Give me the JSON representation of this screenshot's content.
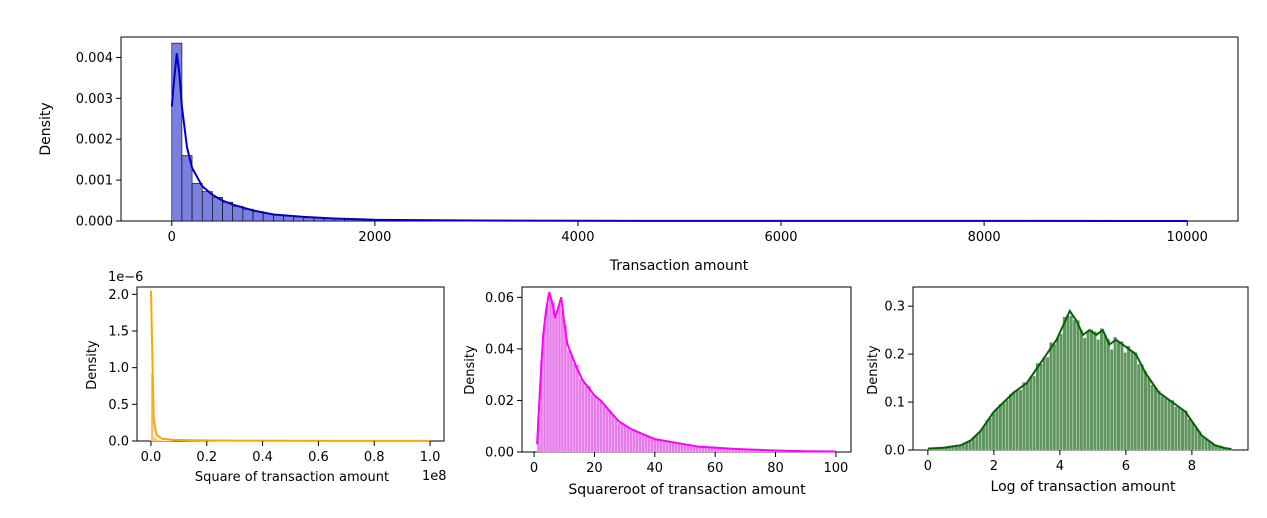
{
  "chart_data": [
    {
      "type": "histogram",
      "xlabel": "Transaction amount",
      "ylabel": "Density",
      "xlim": [
        -500,
        10500
      ],
      "ylim": [
        0,
        0.0045
      ],
      "xticks": [
        0,
        2000,
        4000,
        6000,
        8000,
        10000
      ],
      "xtick_labels": [
        "0",
        "2000",
        "4000",
        "6000",
        "8000",
        "10000"
      ],
      "yticks": [
        0,
        0.001,
        0.002,
        0.003,
        0.004
      ],
      "ytick_labels": [
        "0.000",
        "0.001",
        "0.002",
        "0.003",
        "0.004"
      ],
      "bin_edges": [
        0,
        100,
        200,
        300,
        400,
        500,
        600,
        700,
        800,
        900,
        1000,
        1100,
        1200,
        1300,
        1400,
        1500,
        1600,
        1700,
        1800,
        1900,
        2000,
        2100,
        2200,
        2300,
        2400,
        2500
      ],
      "bar_values": [
        0.00435,
        0.0016,
        0.00092,
        0.00072,
        0.00058,
        0.00046,
        0.00036,
        0.00029,
        0.00023,
        0.00018,
        0.00015,
        0.00012,
        0.0001,
        8e-05,
        7e-05,
        6e-05,
        5e-05,
        4e-05,
        3.5e-05,
        3e-05,
        2.5e-05,
        2e-05,
        1.7e-05,
        1.4e-05,
        1.2e-05
      ],
      "kde_x": [
        0,
        25,
        50,
        75,
        100,
        150,
        200,
        300,
        400,
        500,
        600,
        800,
        1000,
        1300,
        1600,
        2000,
        3000,
        4000,
        6000,
        8000,
        10000
      ],
      "kde_y": [
        0.0028,
        0.0035,
        0.0041,
        0.0036,
        0.0028,
        0.0018,
        0.0013,
        0.00085,
        0.00064,
        0.0005,
        0.0004,
        0.00026,
        0.00016,
        0.0001,
        6e-05,
        3e-05,
        1.2e-05,
        6e-06,
        3e-06,
        2e-06,
        1e-06
      ],
      "color": "#0000c8",
      "bar_fill": "#6d71d9"
    },
    {
      "type": "histogram",
      "xlabel": "Square of transaction amount",
      "ylabel": "Density",
      "offset_text": "1e−6",
      "x_offset_text": "1e8",
      "xlim": [
        -0.05,
        1.05
      ],
      "ylim": [
        0,
        2.1
      ],
      "xticks": [
        0,
        0.2,
        0.4,
        0.6,
        0.8,
        1.0
      ],
      "xtick_labels": [
        "0.0",
        "0.2",
        "0.4",
        "0.6",
        "0.8",
        "1.0"
      ],
      "yticks": [
        0,
        0.5,
        1.0,
        1.5,
        2.0
      ],
      "ytick_labels": [
        "0.0",
        "0.5",
        "1.0",
        "1.5",
        "2.0"
      ],
      "bin_edges": [
        0,
        0.01,
        0.02,
        0.03,
        0.04,
        0.05,
        0.06,
        0.07,
        0.08
      ],
      "bar_values": [
        0.92,
        0.05,
        0.02,
        0.01,
        0.006,
        0.004,
        0.003,
        0.002
      ],
      "kde_x": [
        0,
        0.005,
        0.01,
        0.02,
        0.04,
        0.08,
        0.15,
        0.3,
        0.5,
        0.7,
        1.0
      ],
      "kde_y": [
        2.05,
        1.2,
        0.3,
        0.08,
        0.03,
        0.015,
        0.01,
        0.005,
        0.003,
        0.002,
        0.002
      ],
      "color": "#ffa500",
      "bar_fill": "#f7b84b"
    },
    {
      "type": "histogram",
      "xlabel": "Squareroot of transaction amount",
      "ylabel": "Density",
      "xlim": [
        -4,
        105
      ],
      "ylim": [
        0,
        0.064
      ],
      "xticks": [
        0,
        20,
        40,
        60,
        80,
        100
      ],
      "xtick_labels": [
        "0",
        "20",
        "40",
        "60",
        "80",
        "100"
      ],
      "yticks": [
        0,
        0.02,
        0.04,
        0.06
      ],
      "ytick_labels": [
        "0.00",
        "0.02",
        "0.04",
        "0.06"
      ],
      "kde_x": [
        1,
        2,
        3,
        4,
        5,
        6,
        7,
        8,
        9,
        10,
        11,
        12,
        14,
        16,
        18,
        20,
        22,
        25,
        28,
        32,
        36,
        40,
        45,
        50,
        55,
        60,
        65,
        70,
        75,
        80,
        90,
        100
      ],
      "kde_y": [
        0.003,
        0.025,
        0.045,
        0.055,
        0.062,
        0.058,
        0.052,
        0.056,
        0.06,
        0.05,
        0.042,
        0.039,
        0.033,
        0.028,
        0.025,
        0.022,
        0.02,
        0.016,
        0.012,
        0.009,
        0.007,
        0.005,
        0.004,
        0.003,
        0.002,
        0.0017,
        0.0013,
        0.001,
        0.0008,
        0.0006,
        0.0003,
        0.0002
      ],
      "color": "#ff00ff",
      "bar_fill": "#e36be8"
    },
    {
      "type": "histogram",
      "xlabel": "Log of transaction amount",
      "ylabel": "Density",
      "xlim": [
        -0.45,
        9.7
      ],
      "ylim": [
        0,
        0.34
      ],
      "xticks": [
        0,
        2,
        4,
        6,
        8
      ],
      "xtick_labels": [
        "0",
        "2",
        "4",
        "6",
        "8"
      ],
      "yticks": [
        0,
        0.1,
        0.2,
        0.3
      ],
      "ytick_labels": [
        "0.0",
        "0.1",
        "0.2",
        "0.3"
      ],
      "kde_x": [
        0,
        0.5,
        1.0,
        1.3,
        1.6,
        1.8,
        2.0,
        2.3,
        2.6,
        3.0,
        3.3,
        3.6,
        3.9,
        4.1,
        4.3,
        4.5,
        4.7,
        4.9,
        5.1,
        5.3,
        5.5,
        5.7,
        5.9,
        6.1,
        6.3,
        6.6,
        7.0,
        7.4,
        7.8,
        8.1,
        8.3,
        8.5,
        8.7,
        9.0,
        9.2
      ],
      "kde_y": [
        0.003,
        0.005,
        0.01,
        0.02,
        0.04,
        0.06,
        0.08,
        0.1,
        0.12,
        0.14,
        0.17,
        0.2,
        0.23,
        0.26,
        0.29,
        0.27,
        0.24,
        0.25,
        0.24,
        0.25,
        0.22,
        0.23,
        0.22,
        0.21,
        0.2,
        0.16,
        0.12,
        0.1,
        0.08,
        0.05,
        0.03,
        0.02,
        0.01,
        0.004,
        0.002
      ],
      "color": "#006400",
      "bar_fill": "#4f8a4f"
    }
  ]
}
